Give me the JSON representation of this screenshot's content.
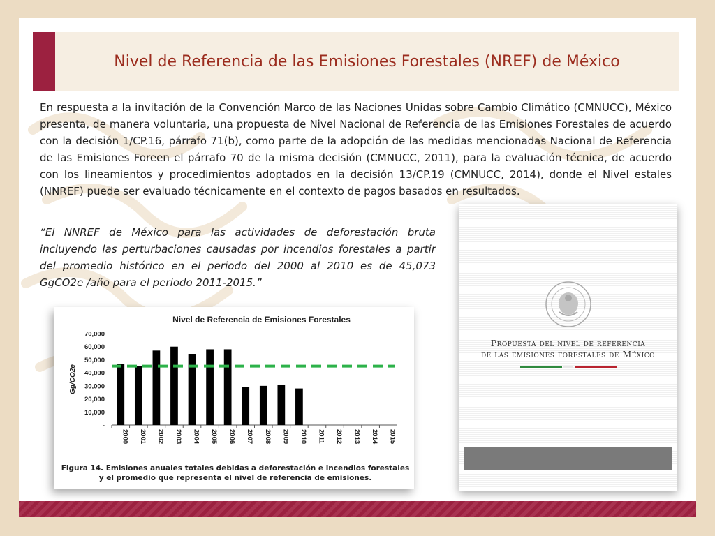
{
  "header": {
    "title": "Nivel de Referencia de las Emisiones Forestales (NREF) de México"
  },
  "body": {
    "intro": "En respuesta a la invitación de la Convención Marco de las Naciones Unidas sobre Cambio Climático (CMNUCC), México presenta, de manera voluntaria, una propuesta de Nivel Nacional de Referencia de las Emisiones Forestales de acuerdo con la decisión 1/CP.16, párrafo 71(b), como parte de la adopción de las medidas mencionadas Nacional de Referencia de las Emisiones Foreen el párrafo 70 de la misma decisión (CMNUCC, 2011), para la evaluación técnica, de acuerdo con los lineamientos y procedimientos adoptados en la decisión 13/CP.19 (CMNUCC, 2014), donde el Nivel estales (NNREF) puede ser evaluado técnicamente en el contexto de pagos basados en resultados.",
    "quote": "“El NNREF de México para las actividades de deforestación bruta incluyendo las perturbaciones causadas por incendios forestales a partir del promedio histórico en el periodo del 2000 al 2010 es de 45,073 GgCO2e /año para el periodo 2011-2015.”"
  },
  "figure": {
    "caption": "Figura 14. Emisiones anuales totales debidas a deforestación e incendios forestales y el promedio que representa el nivel de referencia de emisiones."
  },
  "chart_data": {
    "type": "bar",
    "title": "Nivel de Referencia de Emisiones Forestales",
    "ylabel": "Gg/CO2e",
    "xlabel": "",
    "categories": [
      "2000",
      "2001",
      "2002",
      "2003",
      "2004",
      "2005",
      "2006",
      "2007",
      "2008",
      "2009",
      "2010",
      "2011",
      "2012",
      "2013",
      "2014",
      "2015"
    ],
    "values": [
      47000,
      45000,
      57000,
      60000,
      54500,
      58000,
      58000,
      29000,
      30000,
      31000,
      28000,
      null,
      null,
      null,
      null,
      null
    ],
    "reference_line": 45073,
    "ylim": [
      0,
      70000
    ],
    "yticks": [
      0,
      10000,
      20000,
      30000,
      40000,
      50000,
      60000,
      70000
    ],
    "ytick_labels": [
      "-",
      "10,000",
      "20,000",
      "30,000",
      "40,000",
      "50,000",
      "60,000",
      "70,000"
    ],
    "bar_color": "#000000",
    "reference_color": "#2db24a",
    "grid": false,
    "legend": "none"
  },
  "cover": {
    "title_line1": "Propuesta del nivel de referencia",
    "title_line2": "de las emisiones forestales de México"
  },
  "colors": {
    "accent": "#9c2140",
    "title": "#9b2c1e",
    "background": "#ecdcc3",
    "header_band": "#f6eee2"
  }
}
